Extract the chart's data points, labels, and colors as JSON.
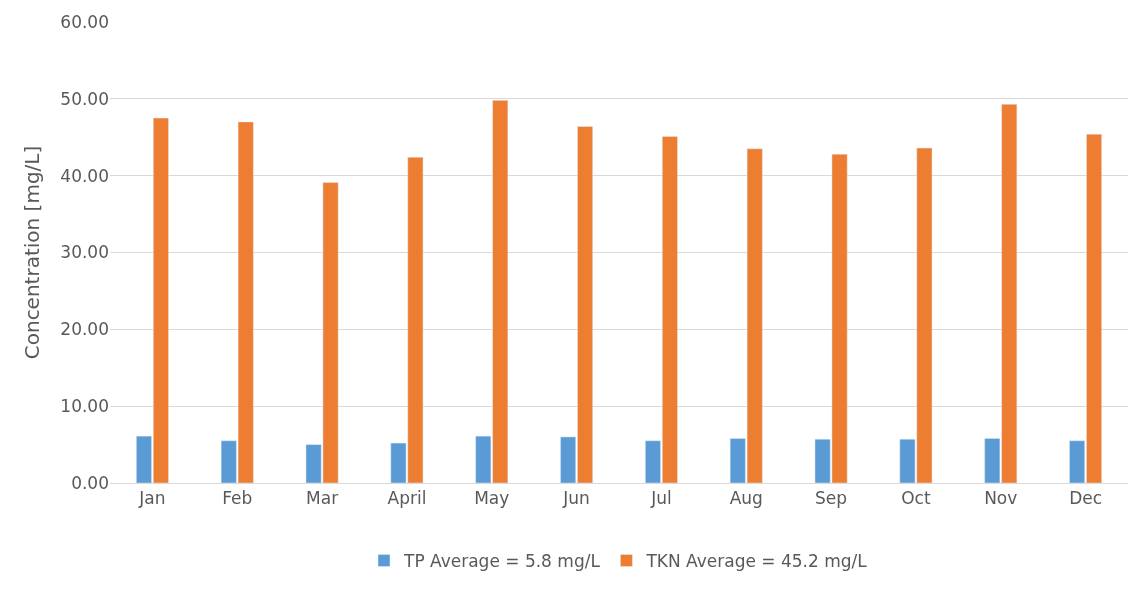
{
  "chart_data": {
    "type": "bar",
    "ylabel": "Concentration [mg/L]",
    "categories": [
      "Jan",
      "Feb",
      "Mar",
      "April",
      "May",
      "Jun",
      "Jul",
      "Aug",
      "Sep",
      "Oct",
      "Nov",
      "Dec"
    ],
    "series": [
      {
        "name": "TP Average = 5.8 mg/L",
        "color": "#5b9bd5",
        "values": [
          6.1,
          5.5,
          5.0,
          5.2,
          6.1,
          6.0,
          5.5,
          5.8,
          5.7,
          5.7,
          5.8,
          5.5
        ]
      },
      {
        "name": "TKN Average = 45.2 mg/L",
        "color": "#ed7d31",
        "values": [
          47.5,
          47.0,
          39.1,
          42.4,
          49.8,
          46.4,
          45.1,
          43.5,
          42.8,
          43.6,
          49.3,
          45.4
        ]
      }
    ],
    "ylim": [
      0,
      60
    ],
    "yticks": [
      {
        "value": 0,
        "label": "0.00"
      },
      {
        "value": 10,
        "label": "10.00"
      },
      {
        "value": 20,
        "label": "20.00"
      },
      {
        "value": 30,
        "label": "30.00"
      },
      {
        "value": 40,
        "label": "40.00"
      },
      {
        "value": 50,
        "label": "50.00"
      },
      {
        "value": 60,
        "label": "60.00"
      }
    ],
    "grid": "y",
    "legend": "bottom"
  }
}
